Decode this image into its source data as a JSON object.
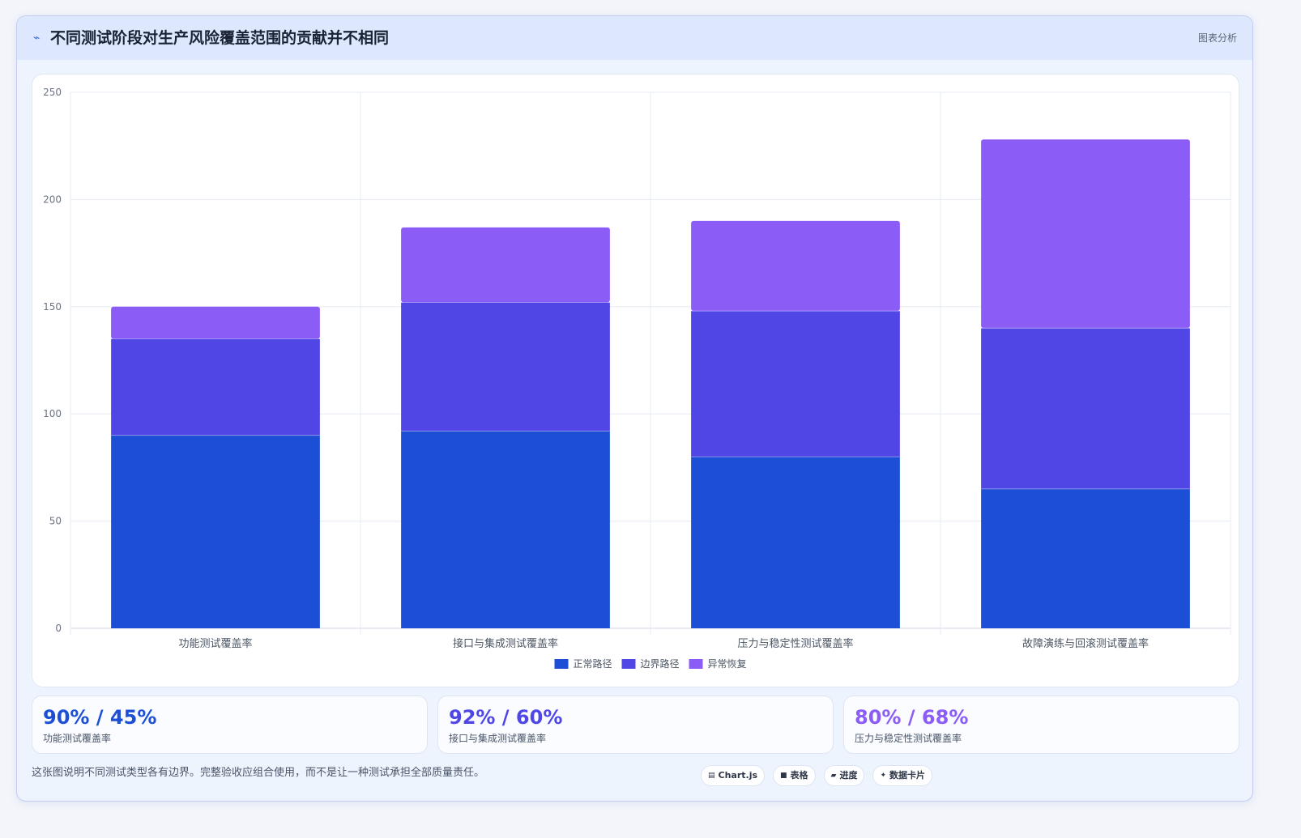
{
  "header": {
    "icon": "line-chart-icon",
    "title": "不同测试阶段对生产风险覆盖范围的贡献并不相同",
    "badge": "图表分析"
  },
  "chart_data": {
    "type": "bar",
    "stacked": true,
    "categories": [
      "功能测试覆盖率",
      "接口与集成测试覆盖率",
      "压力与稳定性测试覆盖率",
      "故障演练与回滚测试覆盖率"
    ],
    "series": [
      {
        "name": "正常路径",
        "color": "#1c4fd6",
        "values": [
          90,
          92,
          80,
          65
        ]
      },
      {
        "name": "边界路径",
        "color": "#4f46e5",
        "values": [
          45,
          60,
          68,
          75
        ]
      },
      {
        "name": "异常恢复",
        "color": "#8b5cf6",
        "values": [
          15,
          35,
          42,
          88
        ]
      }
    ],
    "ylim": [
      0,
      250
    ],
    "yticks": [
      0,
      50,
      100,
      150,
      200,
      250
    ],
    "grid": true,
    "legend": "bottom"
  },
  "stats": [
    {
      "value": "90% / 45%",
      "label": "功能测试覆盖率",
      "color": "#1c4fd6"
    },
    {
      "value": "92% / 60%",
      "label": "接口与集成测试覆盖率",
      "color": "#4f46e5"
    },
    {
      "value": "80% / 68%",
      "label": "压力与稳定性测试覆盖率",
      "color": "#8b5cf6"
    }
  ],
  "footer": {
    "text": "这张图说明不同测试类型各有边界。完整验收应组合使用，而不是让一种测试承担全部质量责任。",
    "tags": [
      {
        "icon": "chart-icon",
        "glyph": "▤",
        "label": "Chart.js"
      },
      {
        "icon": "table-icon",
        "glyph": "■",
        "label": "表格"
      },
      {
        "icon": "progress-icon",
        "glyph": "▰",
        "label": "进度"
      },
      {
        "icon": "sparkle-icon",
        "glyph": "✦",
        "label": "数据卡片"
      }
    ]
  }
}
